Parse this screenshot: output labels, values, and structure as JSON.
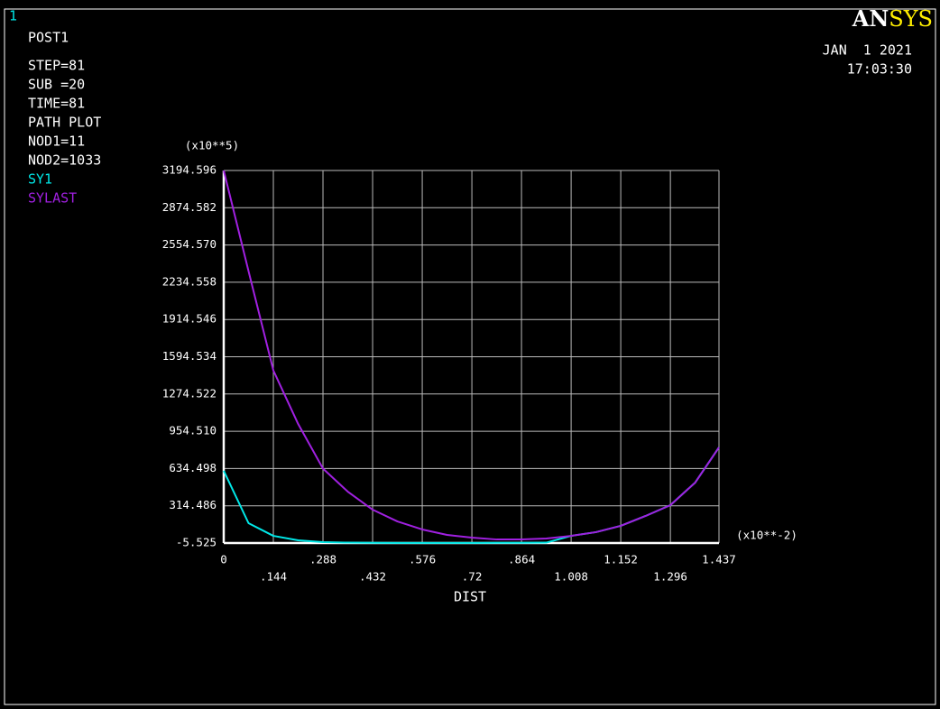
{
  "chart_data": {
    "type": "line",
    "window_number": "1",
    "logo": [
      "AN",
      "SYS"
    ],
    "date": "JAN  1 2021",
    "time": "17:03:30",
    "info": [
      "POST1",
      "STEP=81",
      "SUB =20",
      "TIME=81",
      "PATH PLOT",
      "NOD1=11",
      "NOD2=1033"
    ],
    "y_multiplier": "(x10**5)",
    "x_multiplier": "(x10**-2)",
    "xlabel": "DIST",
    "x": [
      0,
      0.072,
      0.144,
      0.216,
      0.288,
      0.36,
      0.432,
      0.504,
      0.576,
      0.648,
      0.72,
      0.792,
      0.864,
      0.936,
      1.008,
      1.08,
      1.152,
      1.224,
      1.296,
      1.368,
      1.437
    ],
    "series": [
      {
        "name": "SY1",
        "color": "#00e8e8",
        "values": [
          615,
          165,
          56,
          18,
          2,
          -2,
          -4,
          -5,
          -5,
          -5,
          -5,
          -4,
          -4,
          -2,
          56,
          88,
          142,
          227,
          320,
          514,
          816
        ]
      },
      {
        "name": "SYLAST",
        "color": "#a020e0",
        "values": [
          3194.596,
          2330,
          1477,
          1017,
          634,
          436,
          281,
          180,
          111,
          64,
          41,
          25,
          25,
          33,
          56,
          88,
          142,
          227,
          320,
          514,
          816
        ]
      }
    ],
    "xlim": [
      0,
      1.437
    ],
    "xticks": [
      0,
      {
        "value": 0.144,
        "label": ".144"
      },
      {
        "value": 0.288,
        "label": ".288"
      },
      {
        "value": 0.432,
        "label": ".432"
      },
      {
        "value": 0.576,
        "label": ".576"
      },
      {
        "value": 0.72,
        "label": ".72"
      },
      {
        "value": 0.864,
        "label": ".864"
      },
      {
        "value": 1.008,
        "label": "1.008"
      },
      1.152,
      1.296,
      1.437
    ],
    "ylim": [
      -5.525,
      3194.596
    ],
    "yticks": [
      -5.525,
      314.486,
      634.498,
      {
        "value": 954.51,
        "label": "954.510"
      },
      1274.522,
      1594.534,
      1914.546,
      2234.558,
      {
        "value": 2554.57,
        "label": "2554.570"
      },
      2874.582,
      3194.596
    ],
    "grid": true
  }
}
